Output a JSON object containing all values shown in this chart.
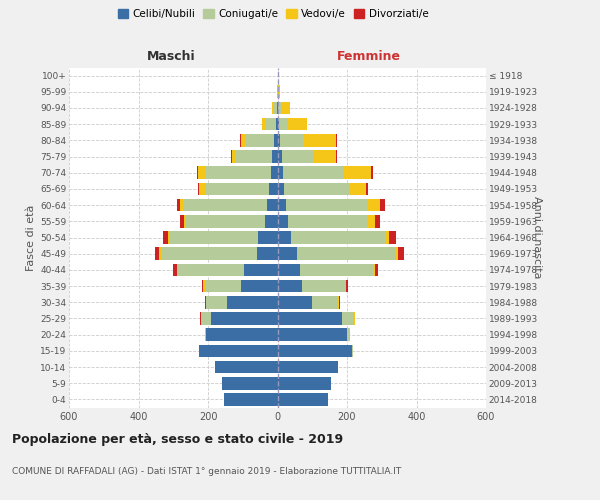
{
  "age_groups": [
    "0-4",
    "5-9",
    "10-14",
    "15-19",
    "20-24",
    "25-29",
    "30-34",
    "35-39",
    "40-44",
    "45-49",
    "50-54",
    "55-59",
    "60-64",
    "65-69",
    "70-74",
    "75-79",
    "80-84",
    "85-89",
    "90-94",
    "95-99",
    "100+"
  ],
  "birth_years": [
    "2014-2018",
    "2009-2013",
    "2004-2008",
    "1999-2003",
    "1994-1998",
    "1989-1993",
    "1984-1988",
    "1979-1983",
    "1974-1978",
    "1969-1973",
    "1964-1968",
    "1959-1963",
    "1954-1958",
    "1949-1953",
    "1944-1948",
    "1939-1943",
    "1934-1938",
    "1929-1933",
    "1924-1928",
    "1919-1923",
    "≤ 1918"
  ],
  "maschi": {
    "celibi": [
      155,
      160,
      180,
      225,
      205,
      190,
      145,
      105,
      95,
      60,
      55,
      35,
      30,
      25,
      20,
      15,
      10,
      4,
      2,
      0,
      0
    ],
    "coniugati": [
      0,
      0,
      0,
      2,
      5,
      30,
      60,
      105,
      190,
      275,
      255,
      230,
      240,
      185,
      185,
      105,
      80,
      30,
      8,
      2,
      0
    ],
    "vedovi": [
      0,
      0,
      0,
      0,
      0,
      0,
      2,
      3,
      5,
      5,
      5,
      5,
      10,
      15,
      25,
      10,
      15,
      10,
      5,
      0,
      0
    ],
    "divorziati": [
      0,
      0,
      0,
      0,
      0,
      2,
      3,
      5,
      10,
      12,
      15,
      10,
      10,
      3,
      2,
      5,
      2,
      0,
      0,
      0,
      0
    ]
  },
  "femmine": {
    "nubili": [
      145,
      155,
      175,
      215,
      200,
      185,
      100,
      70,
      65,
      55,
      40,
      30,
      25,
      20,
      15,
      12,
      8,
      4,
      2,
      0,
      0
    ],
    "coniugate": [
      0,
      0,
      0,
      3,
      10,
      35,
      75,
      125,
      210,
      285,
      270,
      230,
      235,
      185,
      175,
      90,
      65,
      25,
      8,
      2,
      0
    ],
    "vedove": [
      0,
      0,
      0,
      0,
      0,
      2,
      3,
      3,
      5,
      8,
      10,
      20,
      35,
      50,
      80,
      65,
      95,
      55,
      25,
      5,
      0
    ],
    "divorziate": [
      0,
      0,
      0,
      0,
      0,
      2,
      3,
      5,
      10,
      15,
      20,
      15,
      15,
      5,
      5,
      5,
      2,
      0,
      0,
      0,
      0
    ]
  },
  "colors": {
    "celibi": "#3b6ea5",
    "coniugati": "#b5cb99",
    "vedovi": "#f5c518",
    "divorziati": "#cc2222"
  },
  "legend_labels": [
    "Celibi/Nubili",
    "Coniugati/e",
    "Vedovi/e",
    "Divorziati/e"
  ],
  "title": "Popolazione per età, sesso e stato civile - 2019",
  "subtitle": "COMUNE DI RAFFADALI (AG) - Dati ISTAT 1° gennaio 2019 - Elaborazione TUTTITALIA.IT",
  "ylabel_left": "Fasce di età",
  "ylabel_right": "Anni di nascita",
  "xlabel_left": "Maschi",
  "xlabel_right": "Femmine",
  "xlim": 600,
  "bg_color": "#f0f0f0",
  "plot_bg": "#ffffff"
}
